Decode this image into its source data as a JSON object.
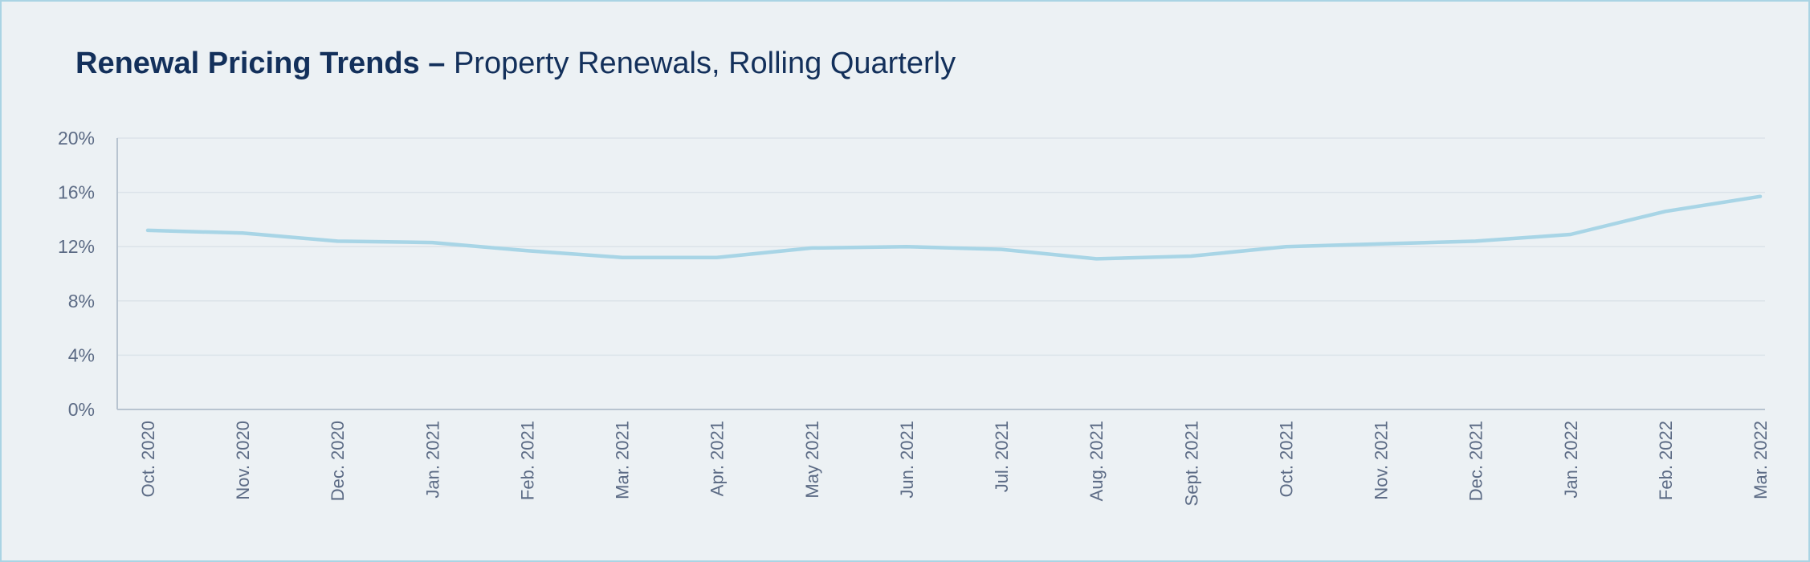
{
  "title": {
    "bold": "Renewal Pricing Trends –",
    "light": " Property Renewals, Rolling Quarterly"
  },
  "colors": {
    "line": "#a8d5e6",
    "grid": "#dbe3e9",
    "axis": "#b8c4d0",
    "tick_text": "#5c6b85",
    "title": "#13305b",
    "background": "#ecf1f4",
    "border": "#aad4e4"
  },
  "chart_data": {
    "type": "line",
    "title": "Renewal Pricing Trends – Property Renewals, Rolling Quarterly",
    "xlabel": "",
    "ylabel": "",
    "categories": [
      "Oct. 2020",
      "Nov. 2020",
      "Dec. 2020",
      "Jan. 2021",
      "Feb. 2021",
      "Mar. 2021",
      "Apr. 2021",
      "May 2021",
      "Jun. 2021",
      "Jul. 2021",
      "Aug. 2021",
      "Sept. 2021",
      "Oct. 2021",
      "Nov. 2021",
      "Dec. 2021",
      "Jan. 2022",
      "Feb. 2022",
      "Mar. 2022"
    ],
    "series": [
      {
        "values": [
          13.2,
          13.0,
          12.4,
          12.3,
          11.7,
          11.2,
          11.2,
          11.9,
          12.0,
          11.8,
          11.1,
          11.3,
          12.0,
          12.2,
          12.4,
          12.9,
          14.6,
          15.7
        ]
      }
    ],
    "ylim": [
      0,
      20
    ],
    "yticks": [
      0,
      4,
      8,
      12,
      16,
      20
    ],
    "ytick_labels": [
      "0%",
      "4%",
      "8%",
      "12%",
      "16%",
      "20%"
    ],
    "grid": true,
    "legend": "none"
  }
}
